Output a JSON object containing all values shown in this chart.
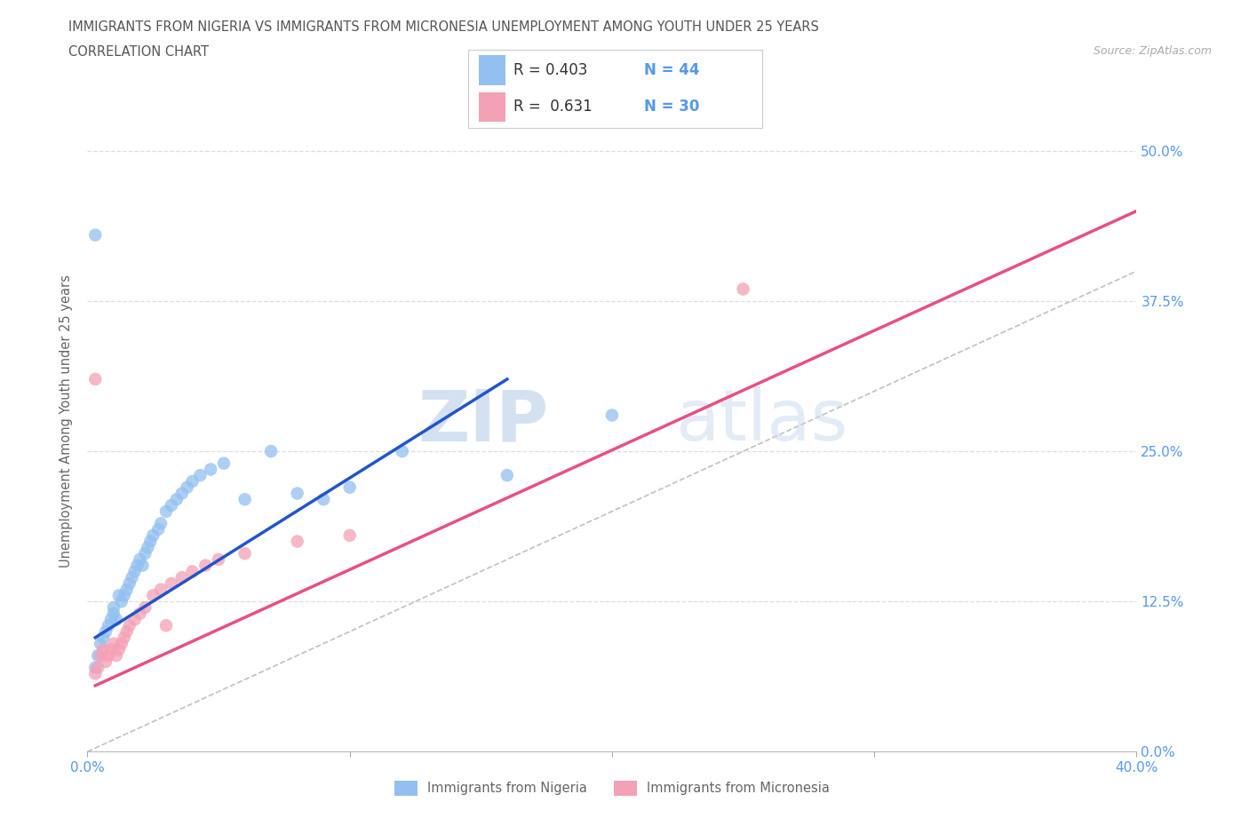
{
  "title_line1": "IMMIGRANTS FROM NIGERIA VS IMMIGRANTS FROM MICRONESIA UNEMPLOYMENT AMONG YOUTH UNDER 25 YEARS",
  "title_line2": "CORRELATION CHART",
  "source_text": "Source: ZipAtlas.com",
  "ylabel": "Unemployment Among Youth under 25 years",
  "xlim": [
    0.0,
    0.4
  ],
  "ylim": [
    0.0,
    0.55
  ],
  "yticks": [
    0.0,
    0.125,
    0.25,
    0.375,
    0.5
  ],
  "ytick_labels": [
    "0.0%",
    "12.5%",
    "25.0%",
    "37.5%",
    "50.0%"
  ],
  "xticks": [
    0.0,
    0.1,
    0.2,
    0.3,
    0.4
  ],
  "xtick_labels_show": [
    "0.0%",
    "40.0%"
  ],
  "xticks_show_vals": [
    0.0,
    0.4
  ],
  "watermark_zip": "ZIP",
  "watermark_atlas": "atlas",
  "legend_nigeria_r": "0.403",
  "legend_nigeria_n": "44",
  "legend_micronesia_r": "0.631",
  "legend_micronesia_n": "30",
  "nigeria_color": "#92c0f0",
  "micronesia_color": "#f4a0b5",
  "nigeria_line_color": "#2255cc",
  "micronesia_line_color": "#e85080",
  "diagonal_color": "#c0c0c0",
  "tick_color_blue": "#5599ee",
  "grid_color": "#dddddd",
  "nigeria_scatter_x": [
    0.003,
    0.004,
    0.005,
    0.006,
    0.007,
    0.008,
    0.009,
    0.01,
    0.01,
    0.011,
    0.012,
    0.013,
    0.014,
    0.015,
    0.016,
    0.017,
    0.018,
    0.019,
    0.02,
    0.021,
    0.022,
    0.023,
    0.024,
    0.025,
    0.027,
    0.028,
    0.03,
    0.032,
    0.034,
    0.036,
    0.038,
    0.04,
    0.043,
    0.047,
    0.052,
    0.06,
    0.07,
    0.08,
    0.09,
    0.1,
    0.12,
    0.16,
    0.2,
    0.003
  ],
  "nigeria_scatter_y": [
    0.07,
    0.08,
    0.09,
    0.095,
    0.1,
    0.105,
    0.11,
    0.115,
    0.12,
    0.11,
    0.13,
    0.125,
    0.13,
    0.135,
    0.14,
    0.145,
    0.15,
    0.155,
    0.16,
    0.155,
    0.165,
    0.17,
    0.175,
    0.18,
    0.185,
    0.19,
    0.2,
    0.205,
    0.21,
    0.215,
    0.22,
    0.225,
    0.23,
    0.235,
    0.24,
    0.21,
    0.25,
    0.215,
    0.21,
    0.22,
    0.25,
    0.23,
    0.28,
    0.43
  ],
  "micronesia_scatter_x": [
    0.003,
    0.004,
    0.005,
    0.006,
    0.007,
    0.008,
    0.009,
    0.01,
    0.011,
    0.012,
    0.013,
    0.014,
    0.015,
    0.016,
    0.018,
    0.02,
    0.022,
    0.025,
    0.028,
    0.032,
    0.036,
    0.04,
    0.045,
    0.05,
    0.06,
    0.08,
    0.1,
    0.03,
    0.25,
    0.003
  ],
  "micronesia_scatter_y": [
    0.065,
    0.07,
    0.08,
    0.085,
    0.075,
    0.08,
    0.085,
    0.09,
    0.08,
    0.085,
    0.09,
    0.095,
    0.1,
    0.105,
    0.11,
    0.115,
    0.12,
    0.13,
    0.135,
    0.14,
    0.145,
    0.15,
    0.155,
    0.16,
    0.165,
    0.175,
    0.18,
    0.105,
    0.385,
    0.31
  ],
  "nig_line_x": [
    0.003,
    0.16
  ],
  "nig_line_y": [
    0.095,
    0.31
  ],
  "mic_line_x": [
    0.003,
    0.4
  ],
  "mic_line_y": [
    0.055,
    0.45
  ]
}
